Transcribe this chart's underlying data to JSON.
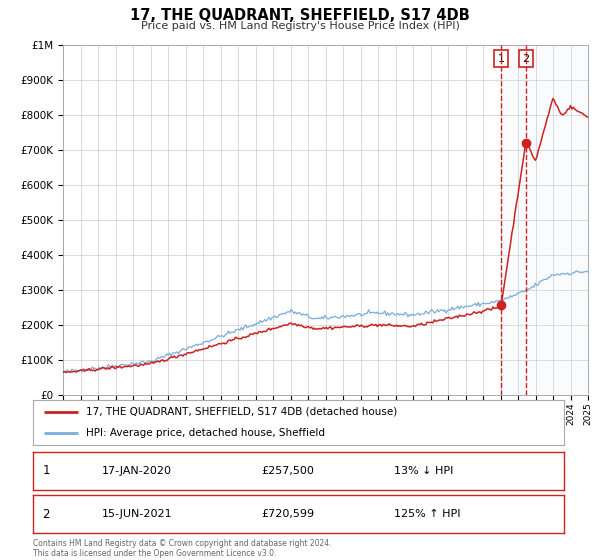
{
  "title": "17, THE QUADRANT, SHEFFIELD, S17 4DB",
  "subtitle": "Price paid vs. HM Land Registry's House Price Index (HPI)",
  "legend_line1": "17, THE QUADRANT, SHEFFIELD, S17 4DB (detached house)",
  "legend_line2": "HPI: Average price, detached house, Sheffield",
  "annotation1_date": "17-JAN-2020",
  "annotation1_price": "£257,500",
  "annotation1_pct": "13% ↓ HPI",
  "annotation2_date": "15-JUN-2021",
  "annotation2_price": "£720,599",
  "annotation2_pct": "125% ↑ HPI",
  "footer": "Contains HM Land Registry data © Crown copyright and database right 2024.\nThis data is licensed under the Open Government Licence v3.0.",
  "hpi_color": "#7aaddc",
  "price_color": "#cc2222",
  "marker_color": "#cc2222",
  "shade_color": "#e8f0f8",
  "ylim": [
    0,
    1000000
  ],
  "xlim_start": 1995,
  "xlim_end": 2025,
  "marker1_x": 2020.04,
  "marker1_y": 257500,
  "marker2_x": 2021.45,
  "marker2_y": 720599
}
